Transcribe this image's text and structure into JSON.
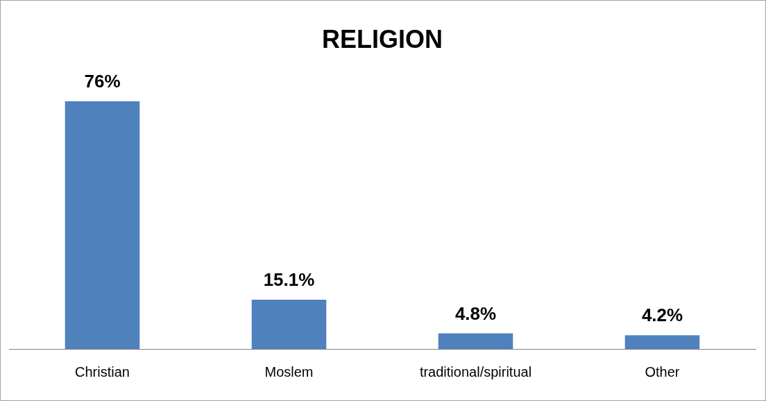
{
  "chart_data": {
    "type": "bar",
    "title": "RELIGION",
    "categories": [
      "Christian",
      "Moslem",
      "traditional/spiritual",
      "Other"
    ],
    "values": [
      76,
      15.1,
      4.8,
      4.2
    ],
    "value_labels": [
      "76%",
      "15.1%",
      "4.8%",
      "4.2%"
    ],
    "color": "#4f81bd",
    "tick_labels": "x",
    "grid": false,
    "legend": false
  }
}
